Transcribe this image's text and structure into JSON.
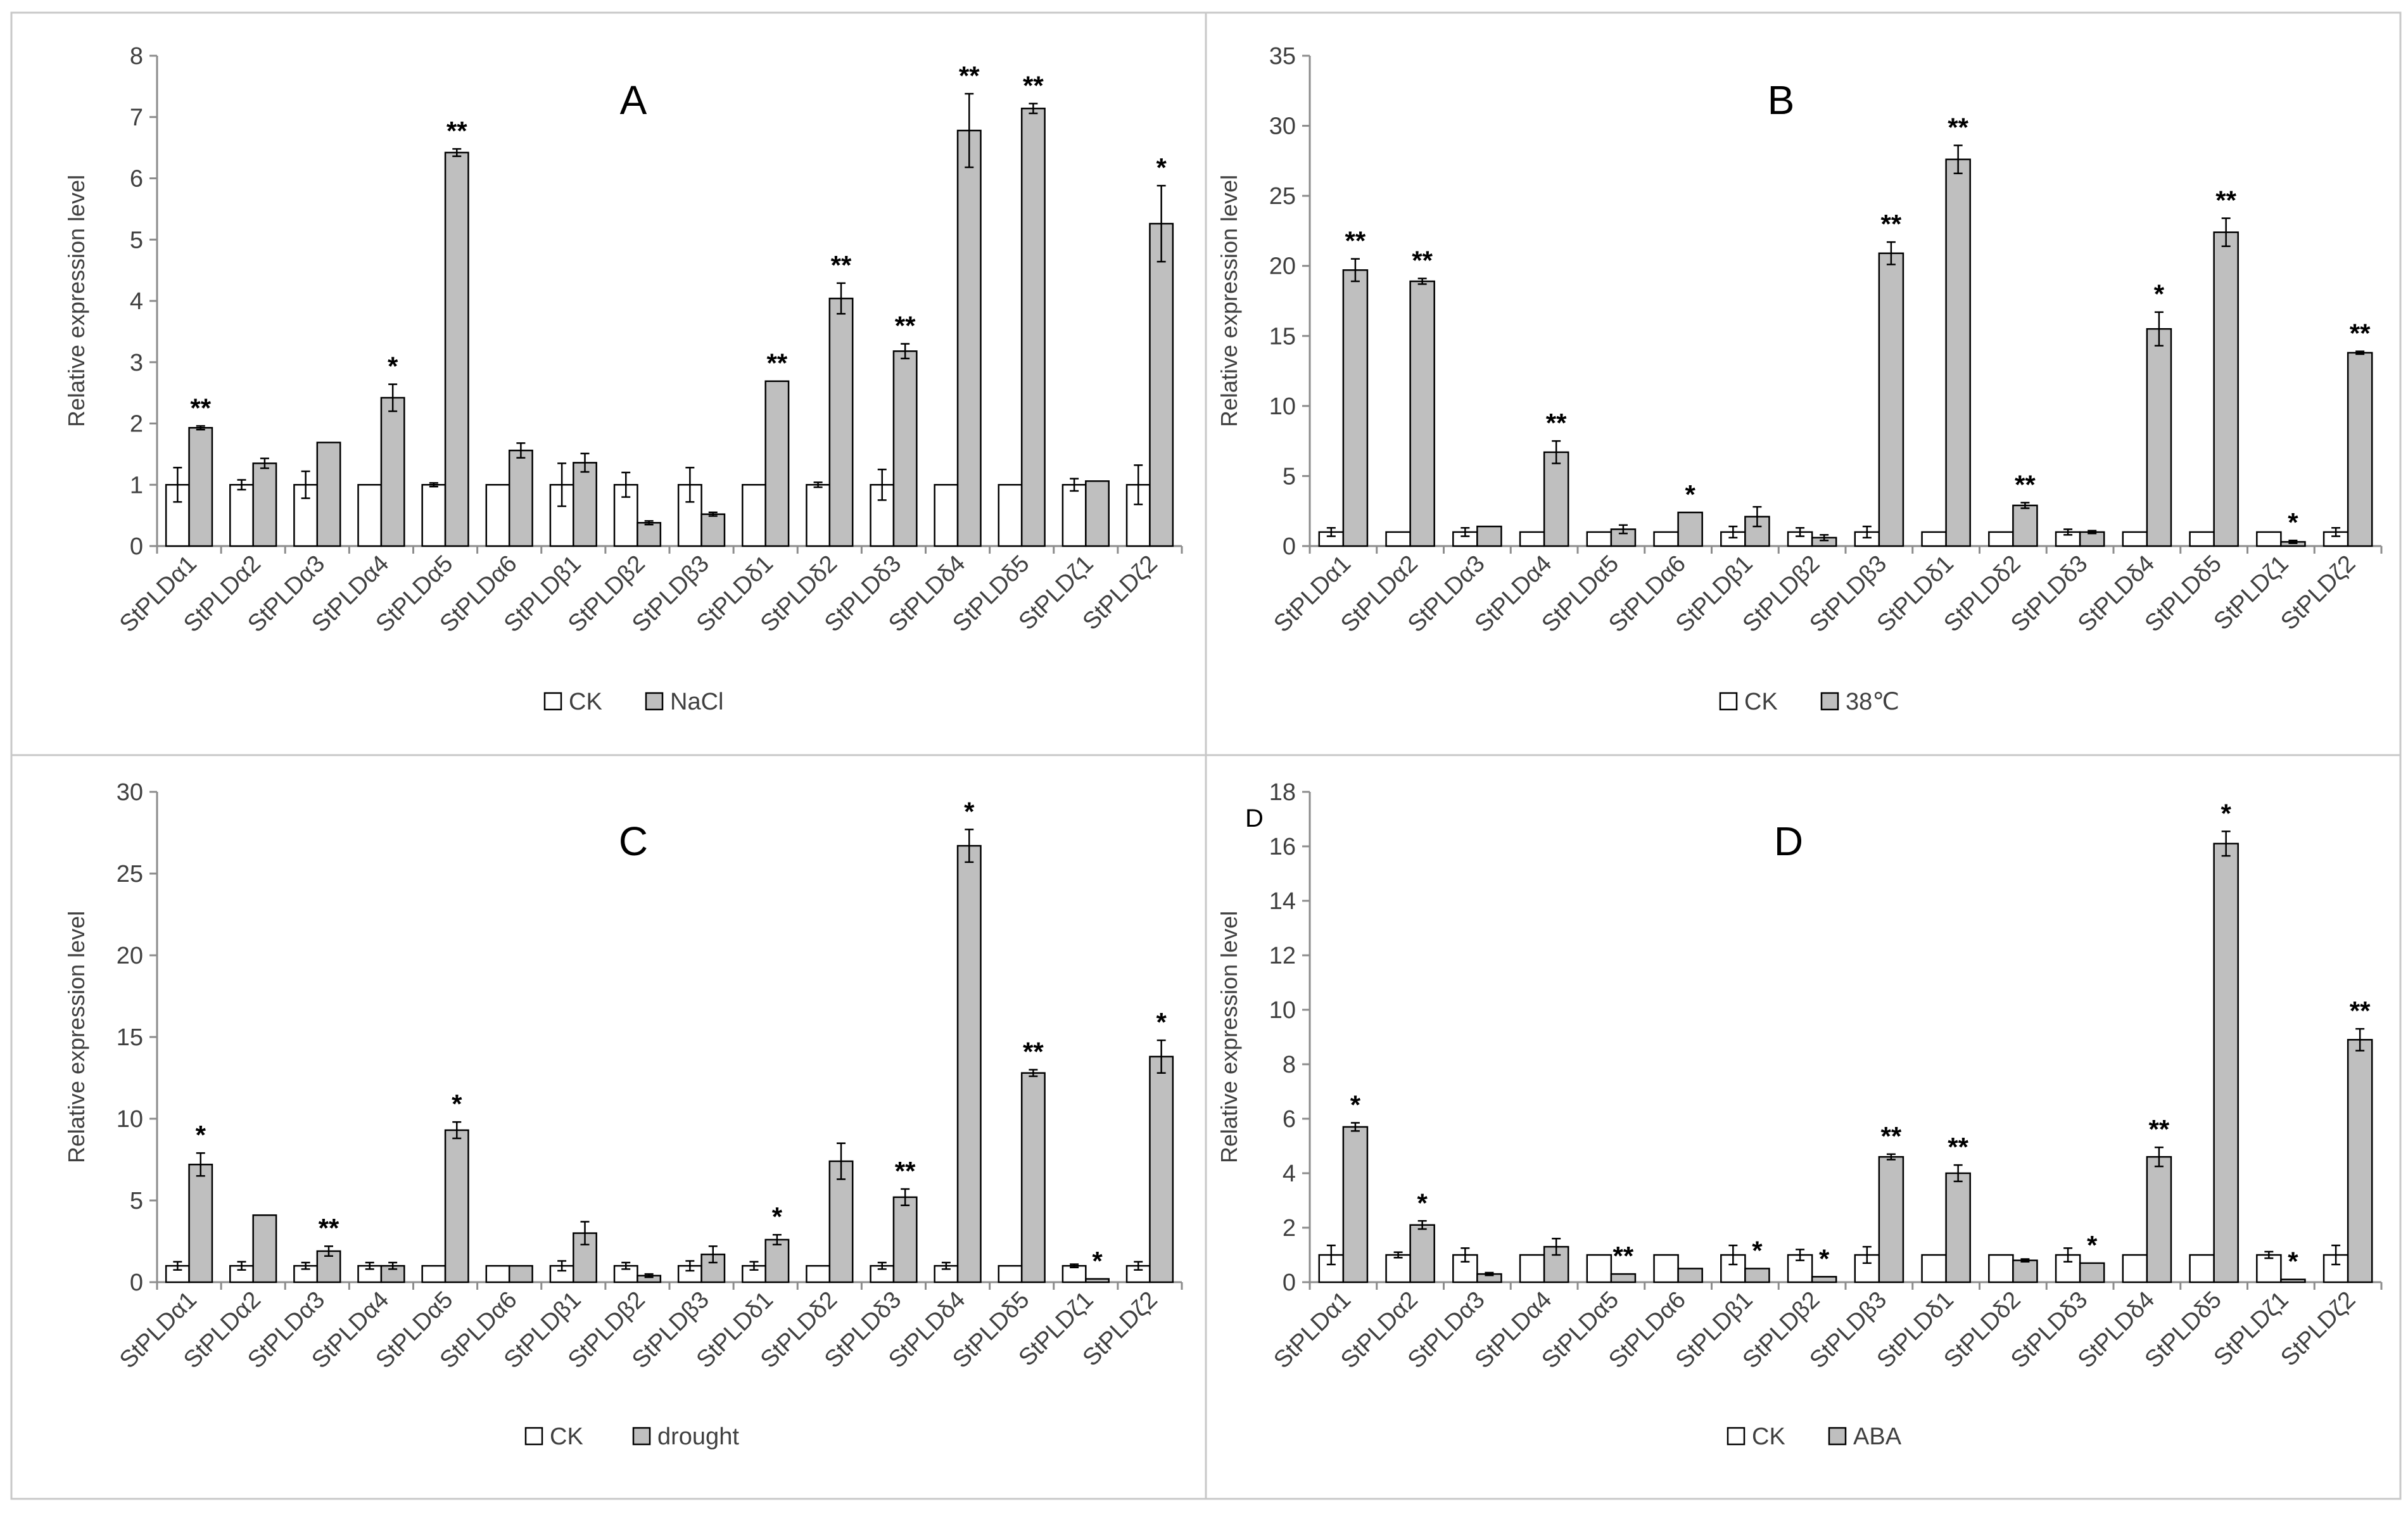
{
  "colors": {
    "ck": "#ffffff",
    "treatment": "#bfbfbf",
    "frame": "#c8c8c8"
  },
  "genes": [
    "StPLDα1",
    "StPLDα2",
    "StPLDα3",
    "StPLDα4",
    "StPLDα5",
    "StPLDα6",
    "StPLDβ1",
    "StPLDβ2",
    "StPLDβ3",
    "StPLDδ1",
    "StPLDδ2",
    "StPLDδ3",
    "StPLDδ4",
    "StPLDδ5",
    "StPLDζ1",
    "StPLDζ2"
  ],
  "chart_data": [
    {
      "type": "bar",
      "title": "A",
      "ylabel": "Relative expression level",
      "xlabel": "",
      "ylim": [
        0,
        8
      ],
      "yticks": [
        0,
        1,
        2,
        3,
        4,
        5,
        6,
        7,
        8
      ],
      "series": [
        {
          "name": "CK",
          "values": [
            1,
            1,
            1,
            1,
            1,
            1,
            1,
            1,
            1,
            1,
            1,
            1,
            1,
            1,
            1,
            1
          ],
          "errors": [
            0.28,
            0.08,
            0.22,
            0,
            0.03,
            0,
            0.35,
            0.2,
            0.28,
            0,
            0.04,
            0.25,
            0,
            0,
            0.1,
            0.32
          ]
        },
        {
          "name": "NaCl",
          "values": [
            1.93,
            1.35,
            1.69,
            2.42,
            6.42,
            1.56,
            1.36,
            0.38,
            0.52,
            2.69,
            4.04,
            3.18,
            6.78,
            7.14,
            1.06,
            5.26
          ],
          "errors": [
            0.03,
            0.08,
            0,
            0.22,
            0.06,
            0.12,
            0.15,
            0.03,
            0.03,
            0,
            0.25,
            0.12,
            0.6,
            0.08,
            0,
            0.62
          ]
        }
      ],
      "significance": [
        "**",
        "",
        "",
        "*",
        "**",
        "",
        "",
        "",
        "",
        "**",
        "**",
        "**",
        "**",
        "**",
        "",
        "*"
      ]
    },
    {
      "type": "bar",
      "title": "B",
      "ylabel": "Relative expression level",
      "xlabel": "",
      "ylim": [
        0,
        35
      ],
      "yticks": [
        0,
        5,
        10,
        15,
        20,
        25,
        30,
        35
      ],
      "series": [
        {
          "name": "CK",
          "values": [
            1,
            1,
            1,
            1,
            1,
            1,
            1,
            1,
            1,
            1,
            1,
            1,
            1,
            1,
            1,
            1
          ],
          "errors": [
            0.3,
            0,
            0.3,
            0,
            0,
            0,
            0.4,
            0.3,
            0.4,
            0,
            0,
            0.2,
            0,
            0,
            0,
            0.3
          ]
        },
        {
          "name": "38℃",
          "values": [
            19.7,
            18.9,
            1.4,
            6.7,
            1.2,
            2.4,
            2.1,
            0.6,
            20.9,
            27.6,
            2.9,
            1.0,
            15.5,
            22.4,
            0.3,
            13.8
          ],
          "errors": [
            0.8,
            0.2,
            0,
            0.8,
            0.3,
            0,
            0.7,
            0.2,
            0.8,
            1.0,
            0.2,
            0.1,
            1.2,
            1.0,
            0.1,
            0.1
          ]
        }
      ],
      "significance": [
        "**",
        "**",
        "",
        "**",
        "",
        "*",
        "",
        "",
        "**",
        "**",
        "**",
        "",
        "*",
        "**",
        "*",
        "**"
      ]
    },
    {
      "type": "bar",
      "title": "C",
      "ylabel": "Relative expression level",
      "xlabel": "",
      "ylim": [
        0,
        30
      ],
      "yticks": [
        0,
        5,
        10,
        15,
        20,
        25,
        30
      ],
      "series": [
        {
          "name": "CK",
          "values": [
            1,
            1,
            1,
            1,
            1,
            1,
            1,
            1,
            1,
            1,
            1,
            1,
            1,
            1,
            1,
            1
          ],
          "errors": [
            0.25,
            0.25,
            0.2,
            0.2,
            0,
            0,
            0.3,
            0.2,
            0.3,
            0.25,
            0,
            0.2,
            0.2,
            0,
            0.1,
            0.25
          ]
        },
        {
          "name": "drought",
          "values": [
            7.2,
            4.1,
            1.9,
            1.0,
            9.3,
            1.0,
            3.0,
            0.4,
            1.7,
            2.6,
            7.4,
            5.2,
            26.7,
            12.8,
            0.2,
            13.8
          ],
          "errors": [
            0.7,
            0,
            0.3,
            0.2,
            0.5,
            0,
            0.7,
            0.1,
            0.5,
            0.3,
            1.1,
            0.5,
            1.0,
            0.2,
            0,
            1.0
          ]
        }
      ],
      "significance": [
        "*",
        "",
        "**",
        "",
        "*",
        "",
        "",
        "",
        "",
        "*",
        "",
        "**",
        "*",
        "**",
        "*",
        "*"
      ]
    },
    {
      "type": "bar",
      "title": "D",
      "corner_label": "D",
      "ylabel": "Relative expression level",
      "xlabel": "",
      "ylim": [
        0,
        18
      ],
      "yticks": [
        0,
        2,
        4,
        6,
        8,
        10,
        12,
        14,
        16,
        18
      ],
      "series": [
        {
          "name": "CK",
          "values": [
            1,
            1,
            1,
            1,
            1,
            1,
            1,
            1,
            1,
            1,
            1,
            1,
            1,
            1,
            1,
            1
          ],
          "errors": [
            0.35,
            0.1,
            0.25,
            0,
            0,
            0,
            0.35,
            0.2,
            0.3,
            0,
            0,
            0.25,
            0,
            0,
            0.12,
            0.35
          ]
        },
        {
          "name": "ABA",
          "values": [
            5.7,
            2.1,
            0.3,
            1.3,
            0.3,
            0.5,
            0.5,
            0.2,
            4.6,
            4.0,
            0.8,
            0.7,
            4.6,
            16.1,
            0.1,
            8.9
          ],
          "errors": [
            0.15,
            0.15,
            0.05,
            0.3,
            0,
            0,
            0,
            0,
            0.1,
            0.3,
            0.05,
            0,
            0.35,
            0.45,
            0,
            0.4
          ]
        }
      ],
      "significance": [
        "*",
        "*",
        "",
        "",
        "**",
        "",
        "*",
        "*",
        "**",
        "**",
        "",
        "*",
        "**",
        "*",
        "*",
        "**"
      ]
    }
  ]
}
